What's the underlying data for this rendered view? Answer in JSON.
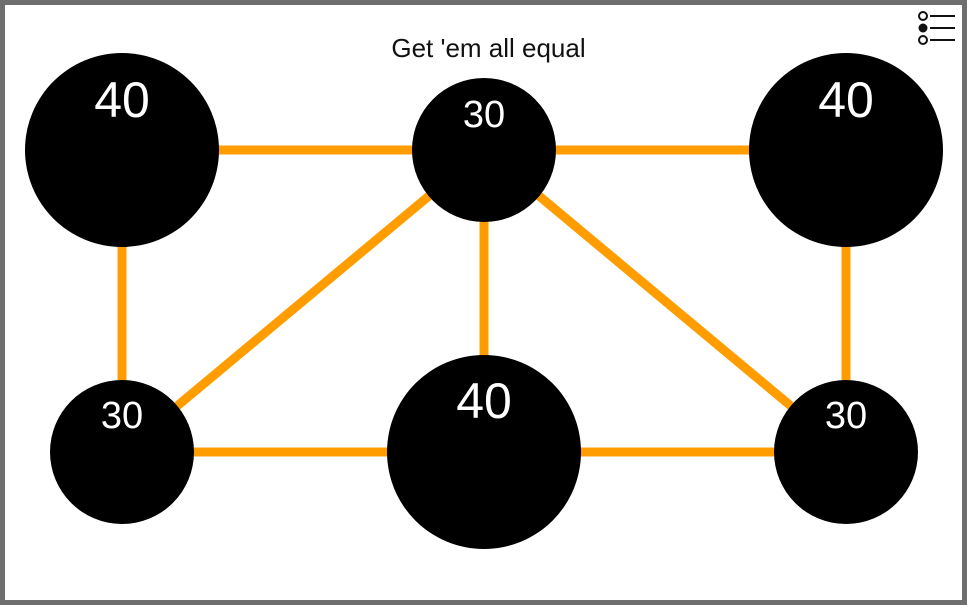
{
  "game": {
    "title": "Get 'em all equal",
    "menu_icon": "list-menu-icon",
    "colors": {
      "background": "#ffffff",
      "frame": "#6e6e6e",
      "edge": "#ff9d00",
      "node": "#000000",
      "node_text": "#ffffff"
    },
    "nodes": [
      {
        "id": "top-left",
        "value": "40"
      },
      {
        "id": "top-center",
        "value": "30"
      },
      {
        "id": "top-right",
        "value": "40"
      },
      {
        "id": "bottom-left",
        "value": "30"
      },
      {
        "id": "bottom-center",
        "value": "40"
      },
      {
        "id": "bottom-right",
        "value": "30"
      }
    ],
    "edges": [
      [
        "top-left",
        "top-center"
      ],
      [
        "top-center",
        "top-right"
      ],
      [
        "top-left",
        "bottom-left"
      ],
      [
        "top-right",
        "bottom-right"
      ],
      [
        "top-center",
        "bottom-left"
      ],
      [
        "top-center",
        "bottom-center"
      ],
      [
        "top-center",
        "bottom-right"
      ],
      [
        "bottom-left",
        "bottom-center"
      ],
      [
        "bottom-center",
        "bottom-right"
      ]
    ]
  }
}
